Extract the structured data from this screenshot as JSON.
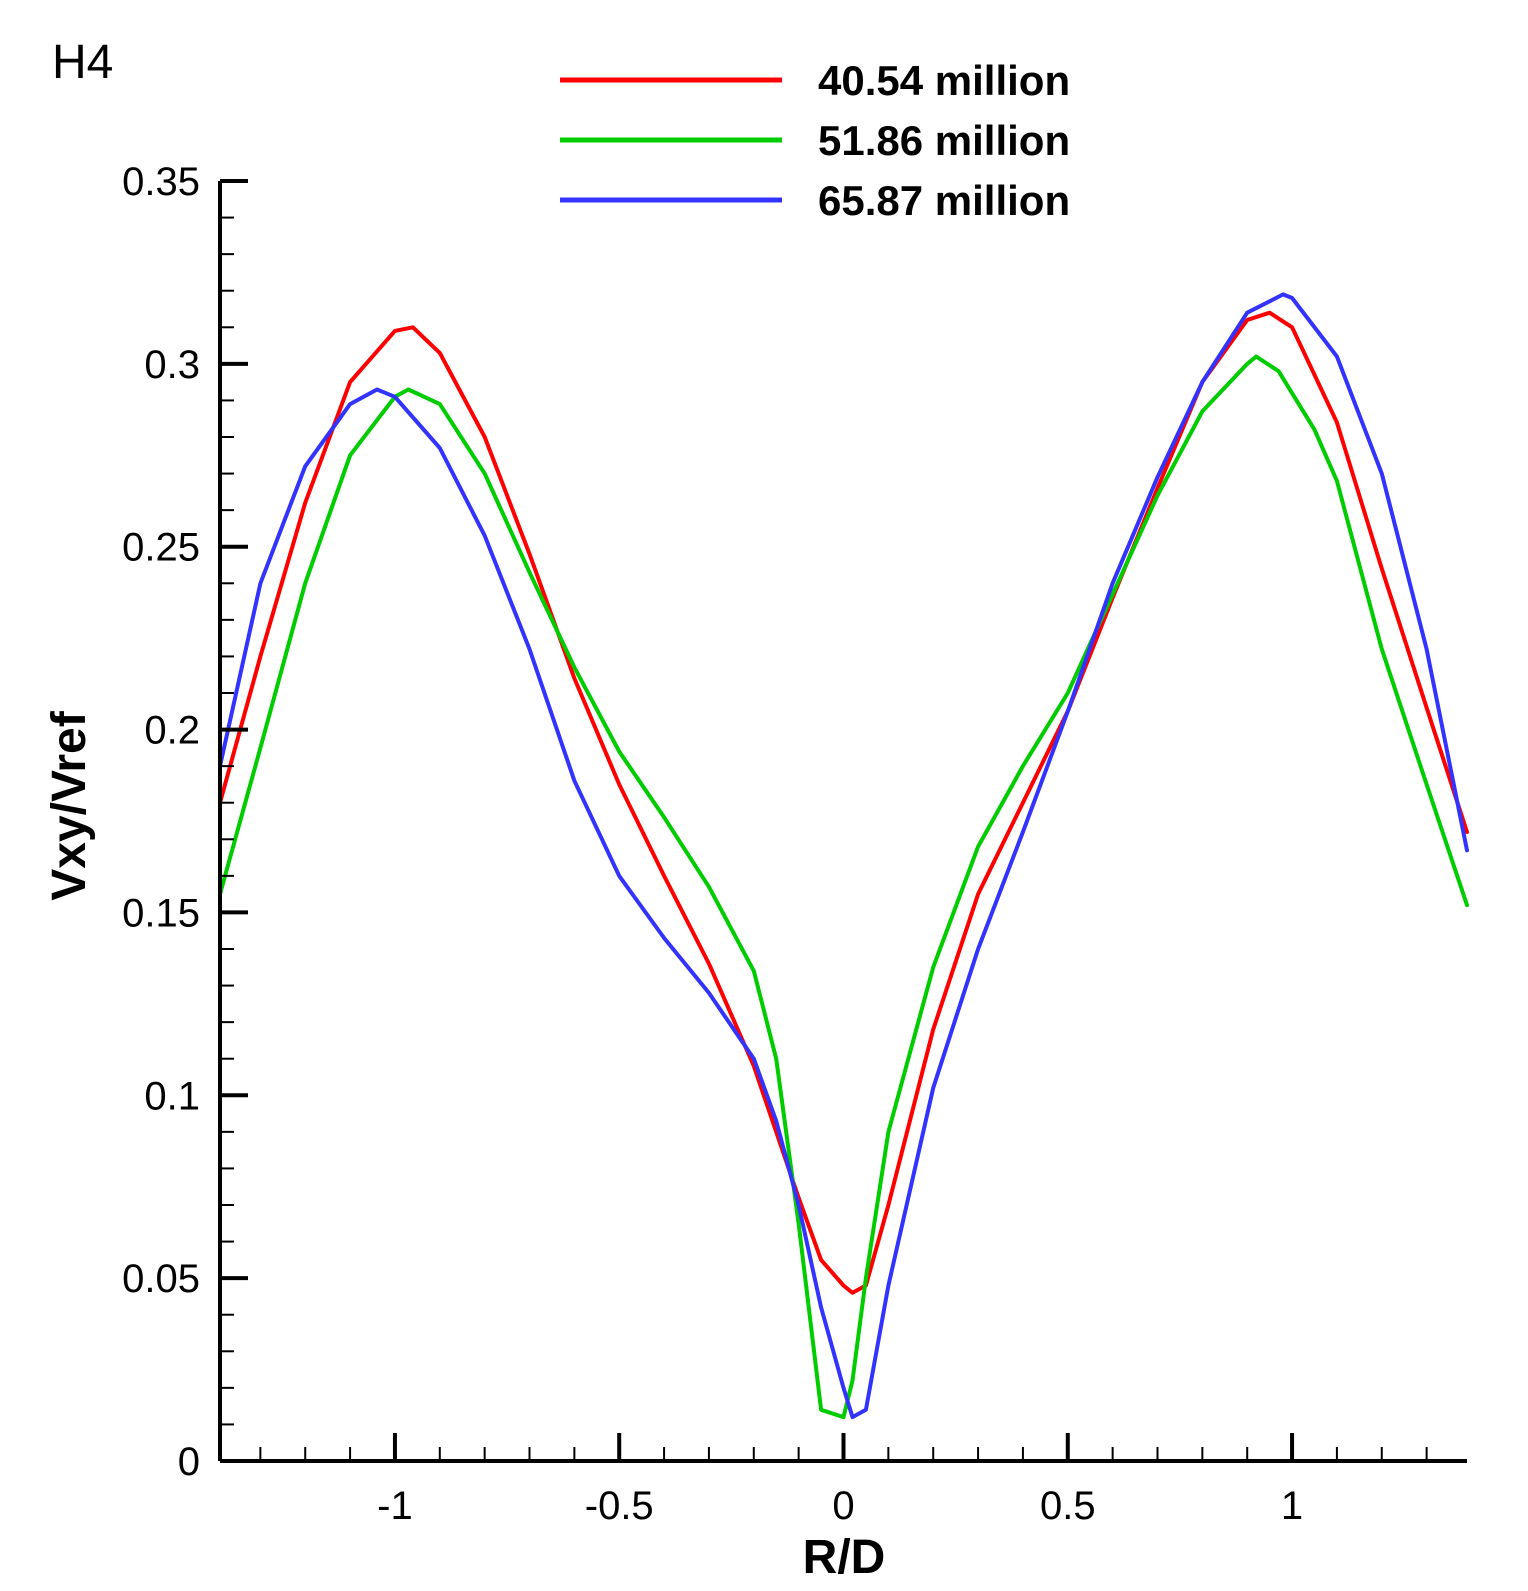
{
  "chart_data": {
    "type": "line",
    "title": "H4",
    "xlabel": "R/D",
    "ylabel": "Vxy/Vref",
    "xlim": [
      -1.39,
      1.39
    ],
    "ylim": [
      0,
      0.35
    ],
    "xticks": [
      -1,
      -0.5,
      0,
      0.5,
      1
    ],
    "xtick_labels": [
      "-1",
      "-0.5",
      "0",
      "0.5",
      "1"
    ],
    "yticks": [
      0,
      0.05,
      0.1,
      0.15,
      0.2,
      0.25,
      0.3,
      0.35
    ],
    "ytick_labels": [
      "0",
      "0.05",
      "0.1",
      "0.15",
      "0.2",
      "0.25",
      "0.3",
      "0.35"
    ],
    "grid": false,
    "legend_position": "top",
    "series": [
      {
        "name": "40.54 million",
        "color": "#ff0000",
        "x": [
          -1.39,
          -1.3,
          -1.2,
          -1.1,
          -1.0,
          -0.96,
          -0.9,
          -0.8,
          -0.7,
          -0.6,
          -0.5,
          -0.4,
          -0.3,
          -0.2,
          -0.15,
          -0.1,
          -0.05,
          0.0,
          0.02,
          0.05,
          0.1,
          0.2,
          0.3,
          0.4,
          0.5,
          0.6,
          0.7,
          0.8,
          0.9,
          0.95,
          1.0,
          1.1,
          1.2,
          1.3,
          1.39
        ],
        "y": [
          0.18,
          0.22,
          0.262,
          0.295,
          0.309,
          0.31,
          0.303,
          0.28,
          0.248,
          0.214,
          0.185,
          0.16,
          0.136,
          0.108,
          0.09,
          0.072,
          0.055,
          0.048,
          0.046,
          0.048,
          0.07,
          0.118,
          0.155,
          0.18,
          0.205,
          0.236,
          0.266,
          0.295,
          0.312,
          0.314,
          0.31,
          0.284,
          0.244,
          0.206,
          0.172
        ]
      },
      {
        "name": "51.86 million",
        "color": "#00cc00",
        "x": [
          -1.39,
          -1.3,
          -1.2,
          -1.1,
          -1.0,
          -0.97,
          -0.9,
          -0.8,
          -0.7,
          -0.6,
          -0.5,
          -0.4,
          -0.3,
          -0.2,
          -0.15,
          -0.1,
          -0.05,
          0.0,
          0.02,
          0.05,
          0.1,
          0.2,
          0.3,
          0.4,
          0.5,
          0.6,
          0.7,
          0.8,
          0.9,
          0.92,
          0.97,
          1.05,
          1.1,
          1.2,
          1.3,
          1.39
        ],
        "y": [
          0.155,
          0.195,
          0.24,
          0.275,
          0.291,
          0.293,
          0.289,
          0.27,
          0.243,
          0.217,
          0.194,
          0.176,
          0.157,
          0.134,
          0.11,
          0.065,
          0.014,
          0.012,
          0.022,
          0.05,
          0.09,
          0.135,
          0.168,
          0.19,
          0.21,
          0.237,
          0.264,
          0.287,
          0.3,
          0.302,
          0.298,
          0.282,
          0.268,
          0.222,
          0.185,
          0.152
        ]
      },
      {
        "name": "65.87 million",
        "color": "#3333ff",
        "x": [
          -1.39,
          -1.3,
          -1.2,
          -1.1,
          -1.04,
          -1.0,
          -0.9,
          -0.8,
          -0.7,
          -0.6,
          -0.5,
          -0.4,
          -0.3,
          -0.2,
          -0.15,
          -0.1,
          -0.05,
          0.0,
          0.02,
          0.05,
          0.1,
          0.2,
          0.3,
          0.4,
          0.5,
          0.6,
          0.7,
          0.8,
          0.9,
          0.98,
          1.0,
          1.1,
          1.2,
          1.3,
          1.39
        ],
        "y": [
          0.19,
          0.24,
          0.272,
          0.289,
          0.293,
          0.291,
          0.277,
          0.253,
          0.222,
          0.186,
          0.16,
          0.143,
          0.128,
          0.11,
          0.093,
          0.07,
          0.042,
          0.02,
          0.012,
          0.014,
          0.048,
          0.102,
          0.14,
          0.172,
          0.205,
          0.24,
          0.269,
          0.295,
          0.314,
          0.319,
          0.318,
          0.302,
          0.27,
          0.222,
          0.167
        ]
      }
    ]
  }
}
